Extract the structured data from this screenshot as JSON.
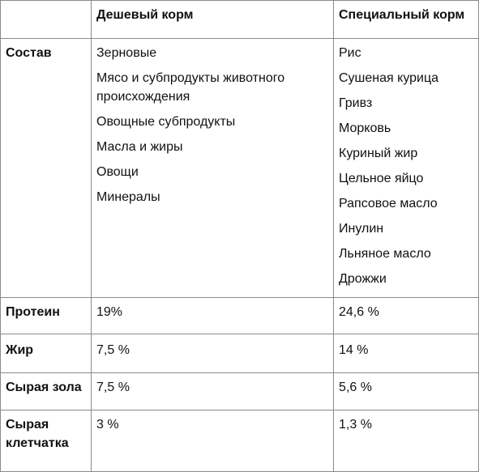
{
  "table": {
    "header": {
      "col1": "",
      "col2": "Дешевый корм",
      "col3": "Специальный корм"
    },
    "rows": [
      {
        "label": "Состав",
        "cheap": [
          "Зерновые",
          "Мясо и субпродукты животного происхождения",
          "Овощные субпродукты",
          "Масла и жиры",
          "Овощи",
          "Минералы"
        ],
        "special": [
          "Рис",
          "Сушеная курица",
          "Гривз",
          "Морковь",
          "Куриный жир",
          "Цельное яйцо",
          "Рапсовое масло",
          "Инулин",
          "Льняное масло",
          "Дрожжи"
        ]
      },
      {
        "label": "Протеин",
        "cheap": "19%",
        "special": "24,6 %"
      },
      {
        "label": "Жир",
        "cheap": "7,5 %",
        "special": "14 %"
      },
      {
        "label": "Сырая зола",
        "cheap": "7,5 %",
        "special": "5,6 %"
      },
      {
        "label": "Сырая клетчатка",
        "cheap": "3 %",
        "special": "1,3 %"
      }
    ]
  }
}
